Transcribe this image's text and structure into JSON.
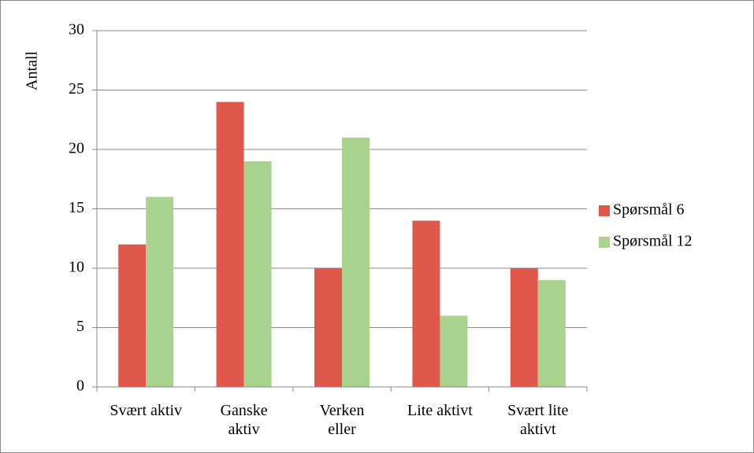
{
  "chart_data": {
    "type": "bar",
    "y_label": "Antall",
    "categories": [
      "Svært aktiv",
      "Ganske aktiv",
      "Verken eller",
      "Lite aktivt",
      "Svært lite aktivt"
    ],
    "series": [
      {
        "name": "Spørsmål 6",
        "color": "#e0584b",
        "values": [
          12,
          24,
          10,
          14,
          10
        ]
      },
      {
        "name": "Spørsmål 12",
        "color": "#a9d38e",
        "values": [
          16,
          19,
          21,
          6,
          9
        ]
      }
    ],
    "ylim": [
      0,
      30
    ],
    "yticks": [
      0,
      5,
      10,
      15,
      20,
      25,
      30
    ],
    "grid": true,
    "legend": "right"
  }
}
